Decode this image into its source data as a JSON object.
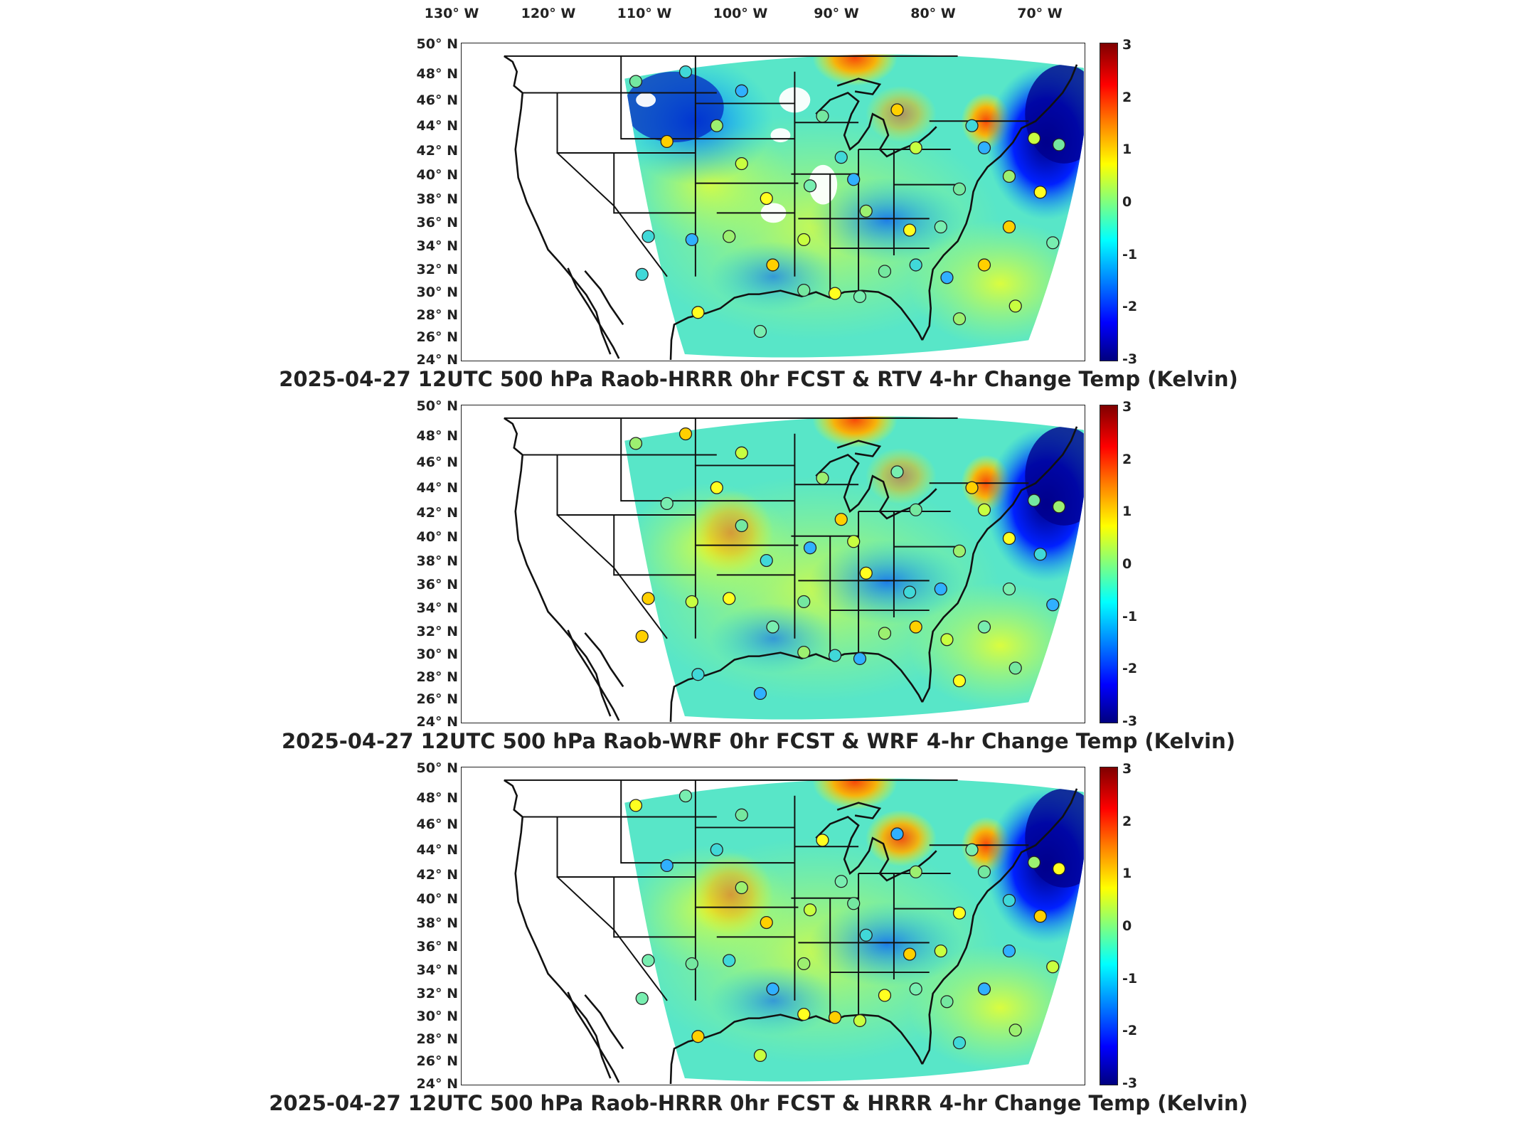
{
  "longitude_labels": [
    "130° W",
    "120° W",
    "110° W",
    "100° W",
    "90° W",
    "80° W",
    "70° W"
  ],
  "latitude_labels": [
    "50° N",
    "48° N",
    "46° N",
    "44° N",
    "42° N",
    "40° N",
    "38° N",
    "36° N",
    "34° N",
    "32° N",
    "30° N",
    "28° N",
    "26° N",
    "24° N"
  ],
  "colorbar": {
    "ticks": [
      "3",
      "2",
      "1",
      "0",
      "-1",
      "-2",
      "-3"
    ],
    "range": [
      -3,
      3
    ],
    "colormap": "jet",
    "unit": "Kelvin"
  },
  "panels": [
    {
      "caption": "2025-04-27 12UTC 500 hPa Raob-HRRR 0hr FCST & RTV 4-hr Change Temp (Kelvin)"
    },
    {
      "caption": "2025-04-27 12UTC 500 hPa Raob-WRF 0hr FCST & WRF 4-hr Change Temp (Kelvin)"
    },
    {
      "caption": "2025-04-27 12UTC 500 hPa Raob-HRRR 0hr FCST & HRRR 4-hr Change Temp (Kelvin)"
    }
  ],
  "colors": {
    "frame": "#222222",
    "background": "#ffffff",
    "dark_red": "#7f0000",
    "dark_blue": "#00007f",
    "neutral_green": "#7fff7f"
  }
}
